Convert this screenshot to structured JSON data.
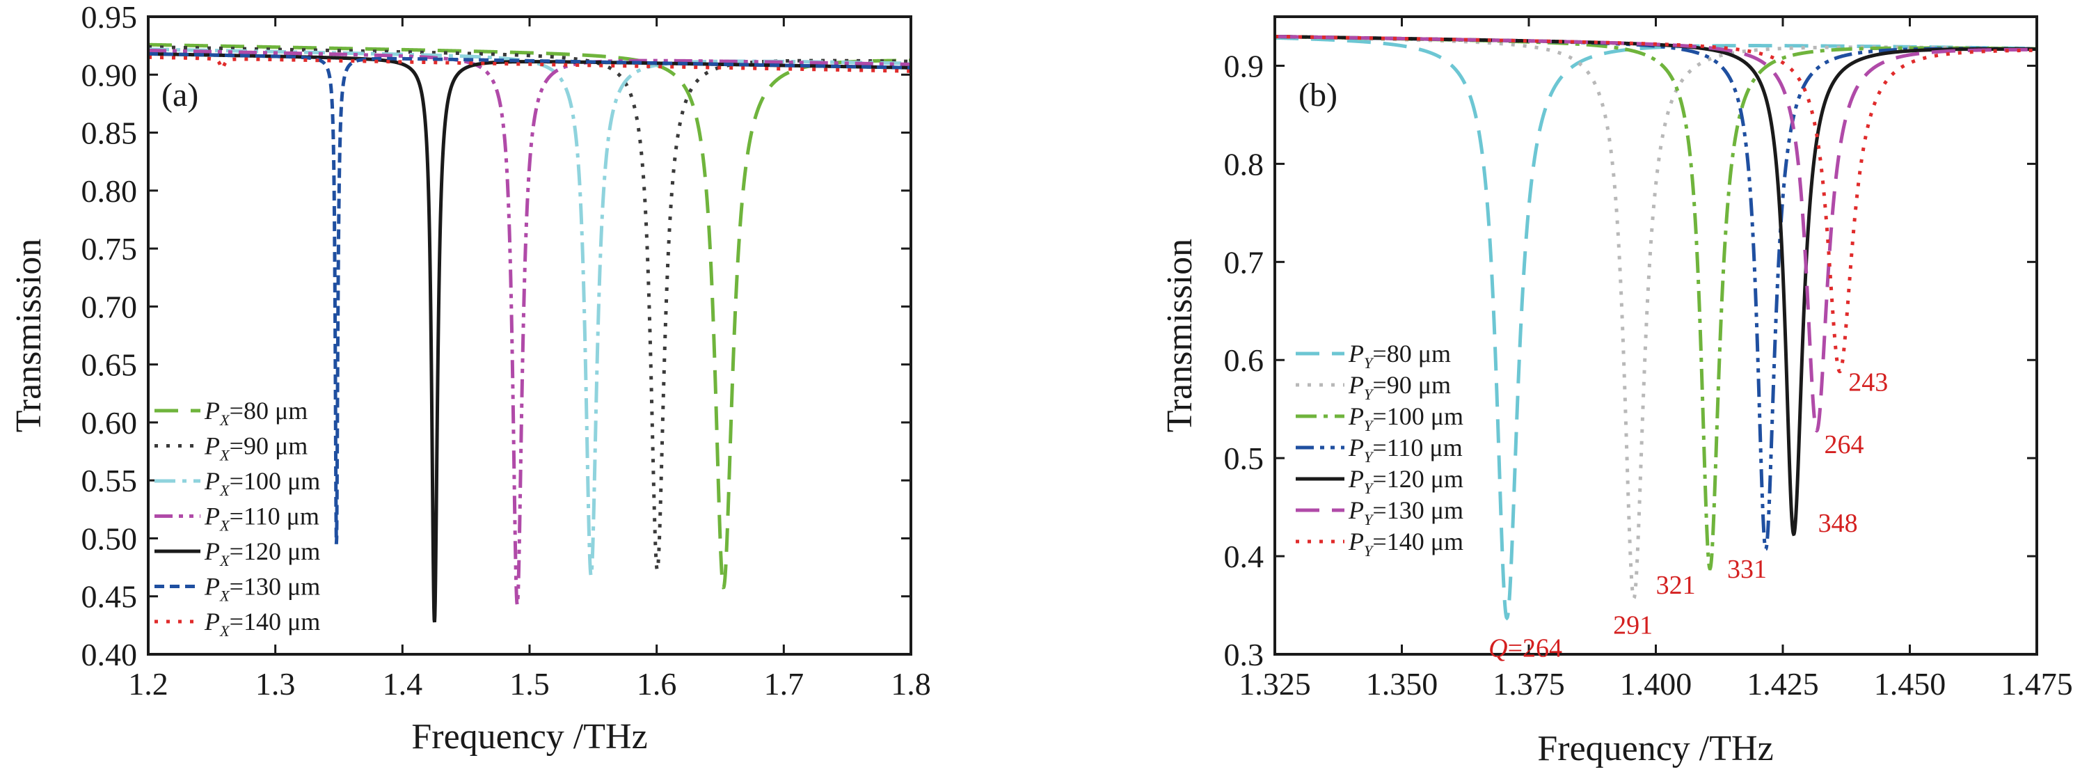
{
  "chart_data": [
    {
      "type": "line",
      "panel_label": "(a)",
      "xlabel": "Frequency /THz",
      "ylabel": "Transmission",
      "xlim": [
        1.2,
        1.8
      ],
      "ylim": [
        0.4,
        0.95
      ],
      "xticks": [
        "1.2",
        "1.3",
        "1.4",
        "1.5",
        "1.6",
        "1.7",
        "1.8"
      ],
      "yticks": [
        "0.40",
        "0.45",
        "0.50",
        "0.55",
        "0.60",
        "0.65",
        "0.70",
        "0.75",
        "0.80",
        "0.85",
        "0.90",
        "0.95"
      ],
      "grid": false,
      "legend_position": "lower-left",
      "series": [
        {
          "name": "PX=80 μm",
          "sub": "X",
          "value": "80",
          "color": "#6fb43c",
          "dash": "dash",
          "baseline": 0.926,
          "resonance": 1.652,
          "depth": 0.46,
          "width": 0.0085
        },
        {
          "name": "PX=90 μm",
          "sub": "X",
          "value": "90",
          "color": "#3a3a3a",
          "dash": "dot",
          "baseline": 0.924,
          "resonance": 1.6,
          "depth": 0.475,
          "width": 0.0065
        },
        {
          "name": "PX=100 μm",
          "sub": "X",
          "value": "100",
          "color": "#8fd3dd",
          "dash": "dashdot",
          "baseline": 0.922,
          "resonance": 1.548,
          "depth": 0.47,
          "width": 0.0055
        },
        {
          "name": "PX=110 μm",
          "sub": "X",
          "value": "110",
          "color": "#b04aa8",
          "dash": "dashdotdot",
          "baseline": 0.921,
          "resonance": 1.49,
          "depth": 0.445,
          "width": 0.0045
        },
        {
          "name": "PX=120 μm",
          "sub": "X",
          "value": "120",
          "color": "#1a1a1a",
          "dash": "solid",
          "baseline": 0.918,
          "resonance": 1.425,
          "depth": 0.43,
          "width": 0.0028
        },
        {
          "name": "PX=130 μm",
          "sub": "X",
          "value": "130",
          "color": "#1f4fa0",
          "dash": "shortdash",
          "baseline": 0.918,
          "resonance": 1.348,
          "depth": 0.495,
          "width": 0.0012
        },
        {
          "name": "PX=140 μm",
          "sub": "X",
          "value": "140",
          "color": "#e02b2b",
          "dash": "dot",
          "baseline": 0.915,
          "resonance": 1.258,
          "depth": 0.905,
          "width": 0.002
        }
      ]
    },
    {
      "type": "line",
      "panel_label": "(b)",
      "xlabel": "Frequency /THz",
      "ylabel": "Transmission",
      "xlim": [
        1.325,
        1.475
      ],
      "ylim": [
        0.3,
        0.95
      ],
      "xticks": [
        "1.325",
        "1.350",
        "1.375",
        "1.400",
        "1.425",
        "1.450",
        "1.475"
      ],
      "yticks": [
        "0.3",
        "0.4",
        "0.5",
        "0.6",
        "0.7",
        "0.8",
        "0.9"
      ],
      "grid": false,
      "legend_position": "lower-left",
      "series": [
        {
          "name": "PY=80 μm",
          "sub": "Y",
          "value": "80",
          "color": "#6cc6d3",
          "dash": "dash",
          "baseline": 0.93,
          "resonance": 1.3705,
          "depth": 0.34,
          "width": 0.0026,
          "q_label": "Q=264"
        },
        {
          "name": "PY=90 μm",
          "sub": "Y",
          "value": "90",
          "color": "#b8b8b8",
          "dash": "dot",
          "baseline": 0.93,
          "resonance": 1.3955,
          "depth": 0.36,
          "width": 0.0024,
          "q_label": "291"
        },
        {
          "name": "PY=100 μm",
          "sub": "Y",
          "value": "100",
          "color": "#6fb43c",
          "dash": "dashdot",
          "baseline": 0.93,
          "resonance": 1.4105,
          "depth": 0.39,
          "width": 0.0022,
          "q_label": "321"
        },
        {
          "name": "PY=110 μm",
          "sub": "Y",
          "value": "110",
          "color": "#1f4fa0",
          "dash": "dashdotdot",
          "baseline": 0.93,
          "resonance": 1.4215,
          "depth": 0.41,
          "width": 0.0021,
          "q_label": "331"
        },
        {
          "name": "PY=120 μm",
          "sub": "Y",
          "value": "120",
          "color": "#1a1a1a",
          "dash": "solid",
          "baseline": 0.93,
          "resonance": 1.427,
          "depth": 0.425,
          "width": 0.0021,
          "q_label": "348"
        },
        {
          "name": "PY=130 μm",
          "sub": "Y",
          "value": "130",
          "color": "#b04aa8",
          "dash": "dash",
          "baseline": 0.93,
          "resonance": 1.4315,
          "depth": 0.53,
          "width": 0.0026,
          "q_label": "264"
        },
        {
          "name": "PY=140 μm",
          "sub": "Y",
          "value": "140",
          "color": "#e02b2b",
          "dash": "dot",
          "baseline": 0.93,
          "resonance": 1.436,
          "depth": 0.59,
          "width": 0.003,
          "q_label": "243"
        }
      ]
    }
  ]
}
